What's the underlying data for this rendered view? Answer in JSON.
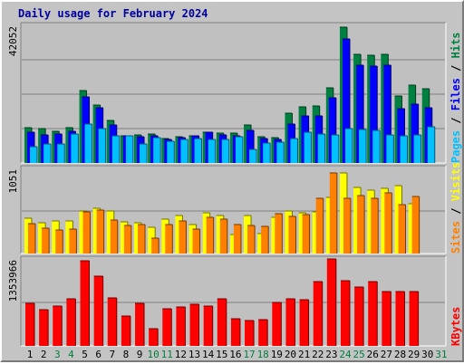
{
  "title": "Daily usage for February 2024",
  "colors": {
    "background": "#c4c4c4",
    "panel": "#c0c0c0",
    "hits": "#008040",
    "files": "#0000ff",
    "pages": "#00c0ff",
    "visits": "#ffff00",
    "sites": "#ff8000",
    "kbytes": "#ff0000",
    "day_weekday": "#000000",
    "day_weekend": "#008040"
  },
  "chart_data": [
    {
      "type": "bar",
      "name": "traffic",
      "categories": [
        "1",
        "2",
        "3",
        "4",
        "5",
        "6",
        "7",
        "8",
        "9",
        "10",
        "11",
        "12",
        "13",
        "14",
        "15",
        "16",
        "17",
        "18",
        "19",
        "20",
        "21",
        "22",
        "23",
        "24",
        "25",
        "26",
        "27",
        "28",
        "29",
        "30",
        "31"
      ],
      "weekend_days": [
        "3",
        "4",
        "10",
        "11",
        "17",
        "18",
        "24",
        "25",
        "31"
      ],
      "ymax_label": "42052",
      "ylim": [
        0,
        42052
      ],
      "series": [
        {
          "name": "Hits",
          "values": [
            10700,
            10400,
            9700,
            10900,
            22200,
            17700,
            12900,
            8300,
            8600,
            8900,
            7500,
            7900,
            8200,
            9300,
            9100,
            9100,
            11500,
            8100,
            7700,
            15300,
            17100,
            17400,
            23000,
            41400,
            33200,
            32900,
            33200,
            20600,
            23700,
            22600,
            0
          ]
        },
        {
          "name": "Files",
          "values": [
            9300,
            8600,
            8800,
            9700,
            20200,
            17000,
            11500,
            8200,
            7900,
            8400,
            7200,
            7800,
            8200,
            9300,
            8600,
            8400,
            10000,
            7400,
            7200,
            12000,
            14500,
            14300,
            19900,
            37800,
            29900,
            29700,
            29900,
            16700,
            18100,
            16800,
            0
          ]
        },
        {
          "name": "Pages",
          "values": [
            4900,
            5800,
            5800,
            8900,
            12000,
            10500,
            8200,
            8300,
            5900,
            7700,
            6700,
            7200,
            7500,
            7300,
            7300,
            8000,
            4200,
            6100,
            6500,
            7400,
            9300,
            8900,
            8500,
            10600,
            10100,
            9900,
            8700,
            8400,
            8600,
            11200,
            0
          ]
        }
      ]
    },
    {
      "type": "bar",
      "name": "visitors",
      "categories": [
        "1",
        "2",
        "3",
        "4",
        "5",
        "6",
        "7",
        "8",
        "9",
        "10",
        "11",
        "12",
        "13",
        "14",
        "15",
        "16",
        "17",
        "18",
        "19",
        "20",
        "21",
        "22",
        "23",
        "24",
        "25",
        "26",
        "27",
        "28",
        "29",
        "30",
        "31"
      ],
      "ymax_label": "1051",
      "ylim": [
        0,
        1051
      ],
      "series": [
        {
          "name": "Visits",
          "values": [
            440,
            380,
            400,
            400,
            530,
            560,
            530,
            390,
            380,
            320,
            420,
            470,
            360,
            500,
            470,
            240,
            470,
            250,
            450,
            530,
            500,
            510,
            690,
            1000,
            820,
            780,
            800,
            840,
            610,
            0,
            0
          ]
        },
        {
          "name": "Sites",
          "values": [
            370,
            310,
            290,
            300,
            510,
            540,
            410,
            350,
            360,
            190,
            360,
            400,
            300,
            450,
            420,
            360,
            350,
            330,
            490,
            460,
            480,
            680,
            990,
            680,
            720,
            680,
            750,
            600,
            700,
            0,
            0
          ]
        }
      ]
    },
    {
      "type": "bar",
      "name": "kbytes",
      "categories": [
        "1",
        "2",
        "3",
        "4",
        "5",
        "6",
        "7",
        "8",
        "9",
        "10",
        "11",
        "12",
        "13",
        "14",
        "15",
        "16",
        "17",
        "18",
        "19",
        "20",
        "21",
        "22",
        "23",
        "24",
        "25",
        "26",
        "27",
        "28",
        "29",
        "30",
        "31"
      ],
      "ymax_label": "1353966",
      "ylim": [
        0,
        1353966
      ],
      "series": [
        {
          "name": "KBytes",
          "values": [
            660000,
            560000,
            620000,
            740000,
            1320000,
            1080000,
            750000,
            460000,
            660000,
            270000,
            580000,
            600000,
            650000,
            620000,
            740000,
            430000,
            400000,
            410000,
            680000,
            730000,
            720000,
            1000000,
            1350000,
            1010000,
            920000,
            1000000,
            840000,
            850000,
            850000,
            0,
            0
          ]
        }
      ]
    }
  ],
  "legends": {
    "traffic": [
      {
        "text": "Pages",
        "color": "#00c0ff"
      },
      {
        "text": " / ",
        "color": "#000000"
      },
      {
        "text": "Files",
        "color": "#0000ff"
      },
      {
        "text": " / ",
        "color": "#000000"
      },
      {
        "text": "Hits",
        "color": "#008040"
      }
    ],
    "visitors": [
      {
        "text": "Sites",
        "color": "#ff8000"
      },
      {
        "text": " / ",
        "color": "#000000"
      },
      {
        "text": "Visits",
        "color": "#ffff00"
      }
    ],
    "kbytes": [
      {
        "text": "KBytes",
        "color": "#ff0000"
      }
    ]
  }
}
